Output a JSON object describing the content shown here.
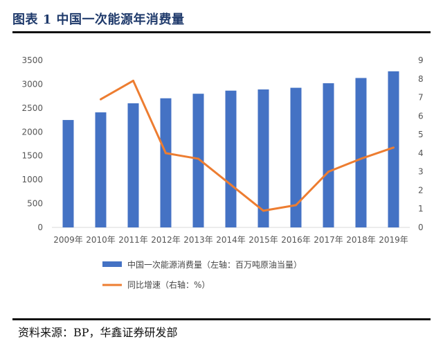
{
  "header": {
    "title": "图表 1 中国一次能源年消费量"
  },
  "footer": {
    "source": "资料来源：BP，华鑫证券研发部"
  },
  "colors": {
    "bar": "#4472c4",
    "line": "#ed7d31",
    "rule": "#111111",
    "title": "#1f3a6b"
  },
  "chart_data": {
    "type": "bar",
    "categories": [
      "2009年",
      "2010年",
      "2011年",
      "2012年",
      "2013年",
      "2014年",
      "2015年",
      "2016年",
      "2017年",
      "2018年",
      "2019年"
    ],
    "series": [
      {
        "name": "中国一次能源消费量（左轴：百万吨原油当量）",
        "type": "bar",
        "axis": "left",
        "values": [
          2250,
          2410,
          2600,
          2705,
          2800,
          2865,
          2890,
          2925,
          3020,
          3130,
          3270
        ]
      },
      {
        "name": "同比增速（右轴：%）",
        "type": "line",
        "axis": "right",
        "values": [
          null,
          6.9,
          7.9,
          4.0,
          3.7,
          2.3,
          0.9,
          1.2,
          3.0,
          3.7,
          4.3
        ]
      }
    ],
    "ylim_left": [
      0,
      3500
    ],
    "yticks_left": [
      "0",
      "500",
      "1000",
      "1500",
      "2000",
      "2500",
      "3000",
      "3500"
    ],
    "ylim_right": [
      0,
      9
    ],
    "yticks_right": [
      "0",
      "1",
      "2",
      "3",
      "4",
      "5",
      "6",
      "7",
      "8",
      "9"
    ],
    "grid": false,
    "legend": "bottom-left"
  }
}
